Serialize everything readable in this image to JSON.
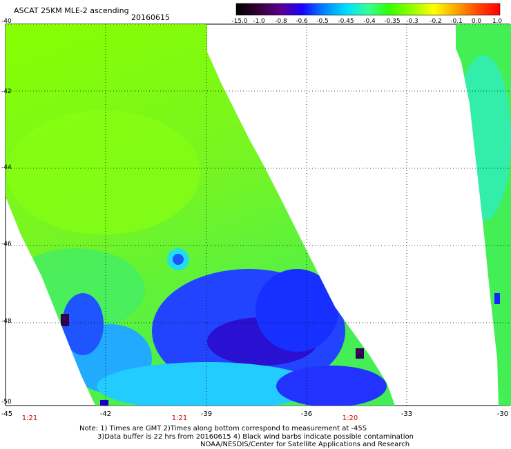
{
  "header": {
    "title": "ASCAT 25KM MLE-2 ascending",
    "date": "20160615"
  },
  "colorbar": {
    "labels": [
      "-15.0",
      "-1.0",
      "-0.8",
      "-0.6",
      "-0.5",
      "-0.45",
      "-0.4",
      "-0.35",
      "-0.3",
      "-0.2",
      "-0.1",
      "0.0",
      "1.0"
    ],
    "colors": [
      "#000000",
      "#330033",
      "#5b0090",
      "#1a00ff",
      "#0080ff",
      "#00e0ff",
      "#33ff99",
      "#33ff00",
      "#99ff00",
      "#ffff00",
      "#ffaa00",
      "#ff4400",
      "#ff0000"
    ]
  },
  "map": {
    "lat_labels": [
      "-40",
      "-42",
      "-44",
      "-46",
      "-48",
      "-50"
    ],
    "lon_labels": [
      "-45",
      "-42",
      "-39",
      "-36",
      "-33",
      "-30"
    ],
    "time_labels": [
      "1:21",
      "1:21",
      "1:20"
    ]
  },
  "notes": {
    "line1": "Note: 1) Times are GMT 2)Times along bottom correspond to measurement at -45S",
    "line2": "3)Data buffer is 22 hrs from 20160615 4) Black wind barbs indicate possible contamination",
    "line3": "NOAA/NESDIS/Center for Satellite Applications and Research"
  }
}
